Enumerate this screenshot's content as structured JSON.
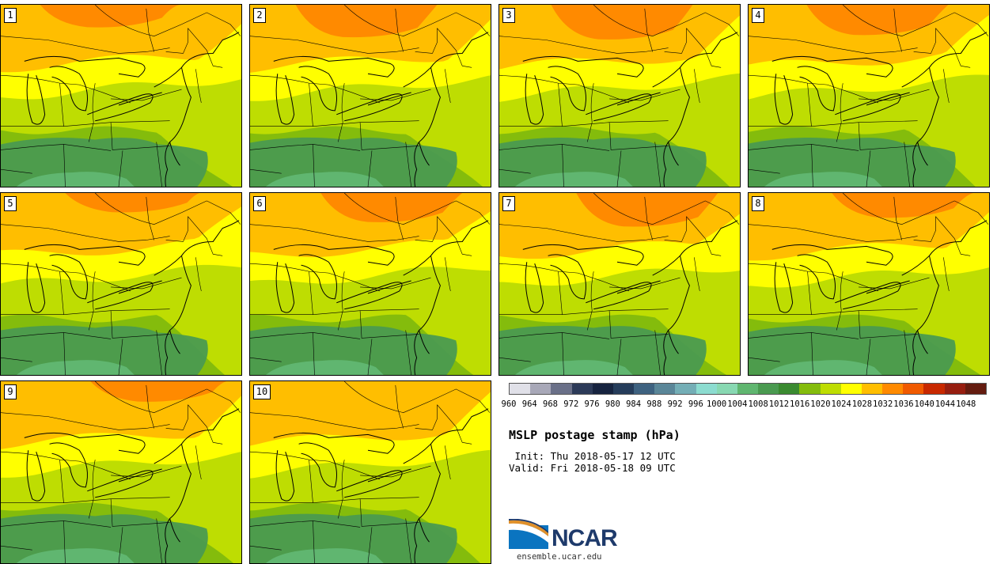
{
  "members": [
    {
      "label": "1",
      "orange": 0.9,
      "dark": 0.7
    },
    {
      "label": "2",
      "orange": 1.8,
      "dark": 0.9
    },
    {
      "label": "3",
      "orange": 2.0,
      "dark": 0.8
    },
    {
      "label": "4",
      "orange": 1.6,
      "dark": 0.8
    },
    {
      "label": "5",
      "orange": 0.6,
      "dark": 1.0
    },
    {
      "label": "6",
      "orange": 1.5,
      "dark": 0.9
    },
    {
      "label": "7",
      "orange": 1.9,
      "dark": 0.9
    },
    {
      "label": "8",
      "orange": 1.1,
      "dark": 0.8
    },
    {
      "label": "9",
      "orange": 0.7,
      "dark": 1.0
    },
    {
      "label": "10",
      "orange": 0.0,
      "dark": 1.0
    }
  ],
  "legend": {
    "ticks": [
      "960",
      "964",
      "968",
      "972",
      "976",
      "980",
      "984",
      "988",
      "992",
      "996",
      "1000",
      "1004",
      "1008",
      "1012",
      "1016",
      "1020",
      "1024",
      "1028",
      "1032",
      "1036",
      "1040",
      "1044",
      "1048"
    ],
    "colors": [
      "#e0e0e8",
      "#a8a8b8",
      "#6a7088",
      "#2c3a58",
      "#16233f",
      "#253c5a",
      "#3e6280",
      "#5a8698",
      "#74aeb6",
      "#8cdcd0",
      "#88d8b2",
      "#60b670",
      "#4a9a50",
      "#3a8a30",
      "#84bc0c",
      "#bedd02",
      "#ffff00",
      "#ffbe00",
      "#ff8a00",
      "#f05a00",
      "#c82800",
      "#961e10",
      "#641c10"
    ]
  },
  "title": "MSLP postage stamp (hPa)",
  "init": " Init: Thu 2018-05-17 12 UTC",
  "valid": "Valid: Fri 2018-05-18 09 UTC",
  "logo_text": "NCAR",
  "website": "ensemble.ucar.edu"
}
